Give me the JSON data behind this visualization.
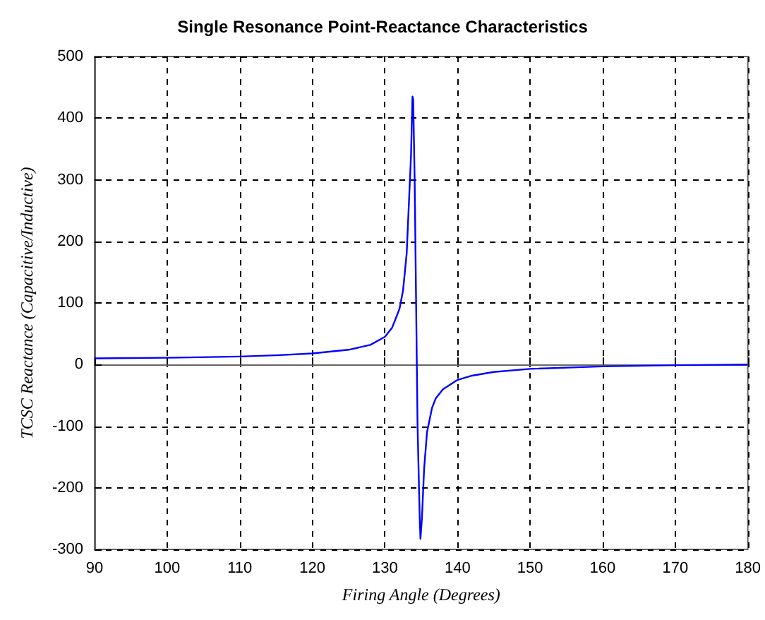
{
  "chart_data": {
    "type": "line",
    "title": "Single Resonance Point-Reactance Characteristics",
    "xlabel": "Firing Angle (Degrees)",
    "ylabel": "TCSC Reactance (Capacitive/Inductive)",
    "xlim": [
      90,
      180
    ],
    "xticks": [
      90,
      100,
      110,
      120,
      130,
      140,
      150,
      160,
      170,
      180
    ],
    "ylim": [
      -300,
      500
    ],
    "yticks": [
      -300,
      -200,
      -100,
      0,
      100,
      200,
      300,
      400,
      500
    ],
    "grid": true,
    "marker": "none",
    "line_style": "solid",
    "series": [
      {
        "color": "#0000ff",
        "x": [
          90,
          100,
          110,
          115,
          120,
          125,
          128,
          130,
          131,
          132,
          132.5,
          133,
          133.3,
          133.6,
          133.8,
          133.9,
          134.1,
          134.3,
          134.5,
          134.8,
          134.9,
          135.1,
          135.4,
          135.8,
          136.5,
          137,
          138,
          140,
          142,
          145,
          150,
          160,
          170,
          180
        ],
        "values": [
          10,
          11,
          13,
          15,
          18,
          24,
          32,
          45,
          60,
          90,
          120,
          180,
          260,
          340,
          435,
          430,
          300,
          100,
          -100,
          -250,
          -283,
          -250,
          -170,
          -110,
          -70,
          -55,
          -40,
          -25,
          -18,
          -12,
          -7,
          -3,
          -1,
          0
        ]
      }
    ]
  }
}
